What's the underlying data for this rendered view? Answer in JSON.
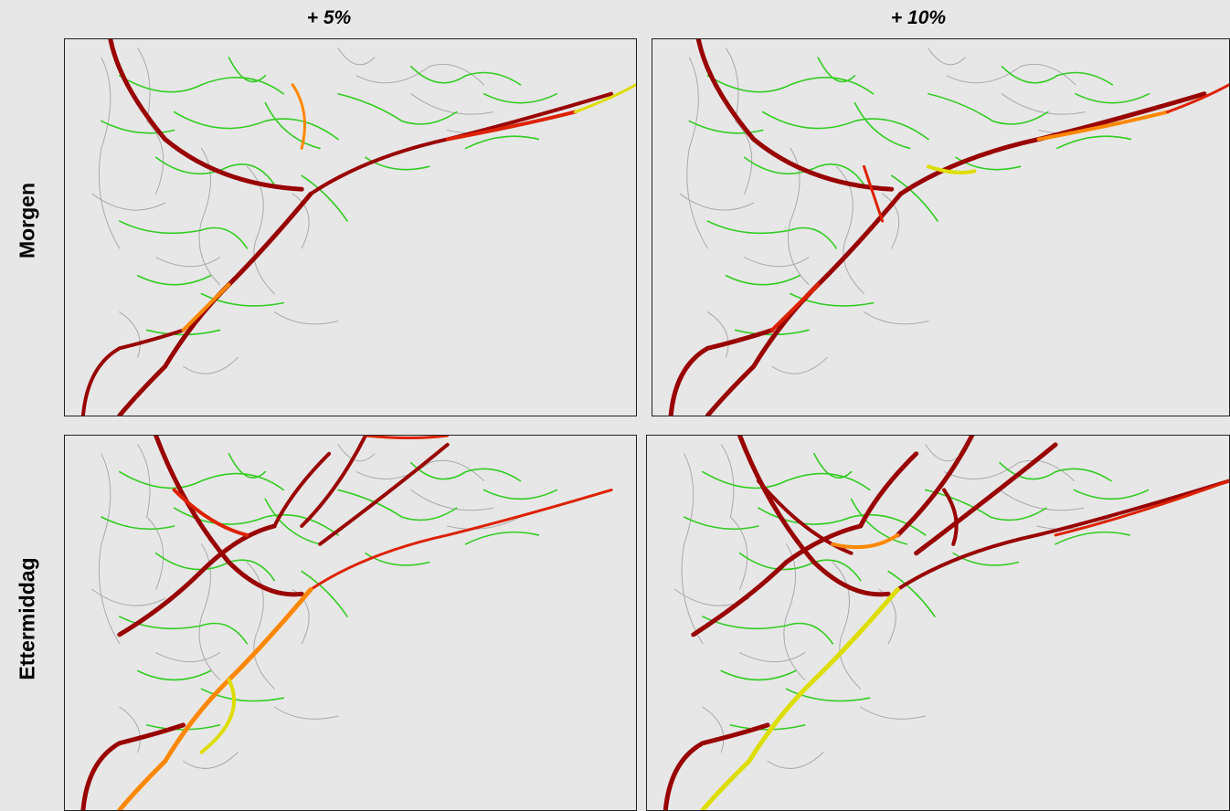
{
  "columns": [
    "+ 5%",
    "+ 10%"
  ],
  "rows": [
    "Morgen",
    "Ettermiddag"
  ],
  "colors": {
    "free_flow": "#33cc22",
    "light": "#dddd00",
    "moderate": "#ff8800",
    "heavy": "#dd2200",
    "severe": "#990000",
    "minor_road": "#aaaaaa",
    "background": "#e7e7e7"
  },
  "panels": [
    {
      "row": "Morgen",
      "column": "+ 5%",
      "congestion": "medium"
    },
    {
      "row": "Morgen",
      "column": "+ 10%",
      "congestion": "medium-high"
    },
    {
      "row": "Ettermiddag",
      "column": "+ 5%",
      "congestion": "high"
    },
    {
      "row": "Ettermiddag",
      "column": "+ 10%",
      "congestion": "very-high"
    }
  ]
}
